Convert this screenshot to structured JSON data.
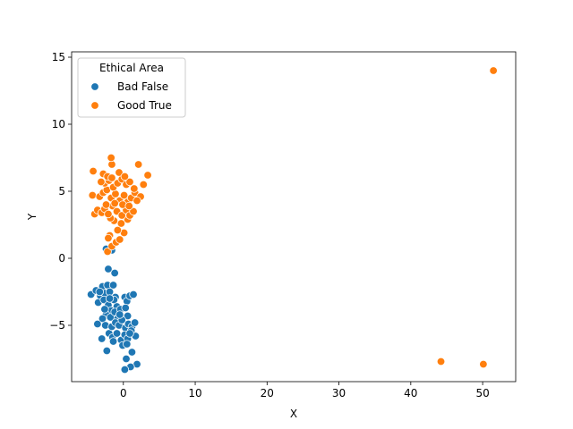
{
  "chart_data": {
    "type": "scatter",
    "xlabel": "X",
    "ylabel": "Y",
    "xlim": [
      -7.2,
      54.6
    ],
    "ylim": [
      -9.2,
      15.4
    ],
    "xticks": [
      0,
      10,
      20,
      30,
      40,
      50
    ],
    "yticks": [
      -5,
      0,
      5,
      10,
      15
    ],
    "grid": false,
    "legend": {
      "title": "Ethical Area",
      "placement": "top-left",
      "entries": [
        "Bad False",
        "Good True"
      ]
    },
    "colors": {
      "Bad False": "#1f77b4",
      "Good True": "#ff7f0e"
    },
    "series": [
      {
        "name": "Bad False",
        "color": "#1f77b4",
        "points": [
          [
            -2.4,
            0.7
          ],
          [
            -1.6,
            0.6
          ],
          [
            -2.1,
            -0.8
          ],
          [
            -1.2,
            -1.1
          ],
          [
            -4.5,
            -2.7
          ],
          [
            -3.8,
            -2.4
          ],
          [
            -3.2,
            -2.8
          ],
          [
            -2.9,
            -2.1
          ],
          [
            -2.6,
            -2.6
          ],
          [
            -2.2,
            -2.0
          ],
          [
            -1.9,
            -2.5
          ],
          [
            -1.4,
            -2.0
          ],
          [
            -1.1,
            -2.9
          ],
          [
            -3.5,
            -3.3
          ],
          [
            -2.7,
            -3.1
          ],
          [
            -2.1,
            -3.5
          ],
          [
            -1.7,
            -3.9
          ],
          [
            -1.3,
            -3.1
          ],
          [
            -0.9,
            -3.6
          ],
          [
            -2.4,
            -4.2
          ],
          [
            -1.8,
            -4.4
          ],
          [
            -1.2,
            -4.0
          ],
          [
            -0.8,
            -4.5
          ],
          [
            -0.4,
            -3.8
          ],
          [
            0.2,
            -2.9
          ],
          [
            0.5,
            -3.2
          ],
          [
            0.9,
            -2.8
          ],
          [
            1.4,
            -2.7
          ],
          [
            0.3,
            -3.7
          ],
          [
            0.6,
            -4.3
          ],
          [
            -2.9,
            -4.5
          ],
          [
            -2.5,
            -5.0
          ],
          [
            -3.6,
            -4.9
          ],
          [
            -2.0,
            -5.6
          ],
          [
            -1.6,
            -5.1
          ],
          [
            -1.1,
            -4.8
          ],
          [
            -0.6,
            -5.0
          ],
          [
            -0.2,
            -4.6
          ],
          [
            0.3,
            -5.2
          ],
          [
            0.7,
            -4.9
          ],
          [
            1.2,
            -5.1
          ],
          [
            1.6,
            -4.8
          ],
          [
            -1.5,
            -5.9
          ],
          [
            -0.9,
            -5.6
          ],
          [
            -0.3,
            -6.1
          ],
          [
            0.2,
            -5.7
          ],
          [
            0.6,
            -6.0
          ],
          [
            1.1,
            -5.4
          ],
          [
            1.7,
            -5.8
          ],
          [
            -3.0,
            -6.0
          ],
          [
            -1.4,
            -6.2
          ],
          [
            -0.1,
            -6.5
          ],
          [
            0.5,
            -6.4
          ],
          [
            -2.3,
            -6.9
          ],
          [
            1.2,
            -7.0
          ],
          [
            0.4,
            -7.5
          ],
          [
            1.9,
            -7.9
          ],
          [
            1.0,
            -8.1
          ],
          [
            0.2,
            -8.3
          ],
          [
            -2.6,
            -3.8
          ],
          [
            -1.9,
            -3.0
          ],
          [
            -0.5,
            -4.2
          ],
          [
            0.9,
            -5.6
          ],
          [
            -3.3,
            -2.5
          ]
        ]
      },
      {
        "name": "Good True",
        "color": "#ff7f0e",
        "points": [
          [
            51.5,
            14.0
          ],
          [
            44.2,
            -7.7
          ],
          [
            50.1,
            -7.9
          ],
          [
            -2.2,
            0.5
          ],
          [
            -1.6,
            0.9
          ],
          [
            -1.0,
            1.2
          ],
          [
            -0.5,
            1.4
          ],
          [
            -1.9,
            1.7
          ],
          [
            0.1,
            1.9
          ],
          [
            -0.8,
            2.1
          ],
          [
            -2.1,
            1.5
          ],
          [
            -0.3,
            2.6
          ],
          [
            -1.3,
            2.8
          ],
          [
            0.6,
            2.9
          ],
          [
            -1.8,
            3.0
          ],
          [
            -4.0,
            3.3
          ],
          [
            -3.6,
            3.6
          ],
          [
            -3.0,
            3.4
          ],
          [
            -2.6,
            3.7
          ],
          [
            -2.1,
            3.3
          ],
          [
            -1.5,
            3.9
          ],
          [
            -0.9,
            3.5
          ],
          [
            -0.2,
            3.2
          ],
          [
            0.4,
            3.6
          ],
          [
            0.9,
            3.2
          ],
          [
            1.4,
            3.5
          ],
          [
            -4.3,
            4.7
          ],
          [
            -3.3,
            4.6
          ],
          [
            -2.8,
            4.9
          ],
          [
            -2.3,
            5.1
          ],
          [
            -1.7,
            4.5
          ],
          [
            -1.1,
            4.8
          ],
          [
            -0.5,
            4.3
          ],
          [
            0.1,
            4.7
          ],
          [
            0.6,
            4.2
          ],
          [
            1.1,
            4.5
          ],
          [
            1.6,
            4.9
          ],
          [
            2.4,
            4.6
          ],
          [
            -2.6,
            5.6
          ],
          [
            -2.0,
            5.8
          ],
          [
            -1.4,
            5.3
          ],
          [
            -0.8,
            5.6
          ],
          [
            -0.2,
            5.9
          ],
          [
            0.4,
            5.5
          ],
          [
            0.9,
            5.7
          ],
          [
            1.5,
            5.2
          ],
          [
            2.8,
            5.5
          ],
          [
            -4.2,
            6.5
          ],
          [
            -2.8,
            6.3
          ],
          [
            -2.2,
            6.1
          ],
          [
            -1.6,
            6.0
          ],
          [
            -0.6,
            6.4
          ],
          [
            0.2,
            6.1
          ],
          [
            3.4,
            6.2
          ],
          [
            -1.6,
            7.0
          ],
          [
            2.1,
            7.0
          ],
          [
            -1.7,
            7.5
          ],
          [
            -3.1,
            5.7
          ],
          [
            -0.1,
            4.0
          ],
          [
            -1.2,
            4.1
          ],
          [
            0.8,
            3.9
          ],
          [
            -2.4,
            4.0
          ],
          [
            1.9,
            4.3
          ]
        ]
      }
    ]
  }
}
